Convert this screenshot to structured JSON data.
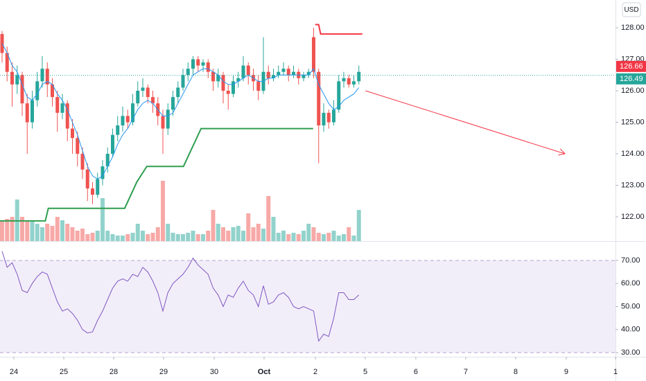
{
  "chart_data": {
    "type": "candlestick",
    "currency": "USD",
    "x": [
      0,
      1,
      2,
      3,
      4,
      5,
      6,
      7,
      8,
      9,
      10,
      11,
      12,
      13,
      14,
      15,
      16,
      17,
      18,
      19,
      20,
      21,
      22,
      23,
      24,
      25,
      26,
      27,
      28,
      29,
      30,
      31,
      32,
      33,
      34,
      35,
      36,
      37,
      38,
      39,
      40,
      41,
      42,
      43,
      44,
      45,
      46,
      47,
      48,
      49,
      50,
      51,
      52,
      53,
      54,
      55,
      56,
      57,
      58,
      59,
      60,
      61,
      62,
      63,
      64,
      65,
      66,
      67,
      68,
      69,
      70,
      71
    ],
    "candles": [
      [
        127.8,
        127.9,
        126.9,
        127.2
      ],
      [
        127.2,
        127.4,
        126.3,
        126.6
      ],
      [
        126.6,
        126.9,
        125.5,
        126.2
      ],
      [
        126.2,
        126.8,
        125.9,
        126.5
      ],
      [
        126.5,
        126.6,
        125.2,
        125.6
      ],
      [
        125.6,
        125.9,
        124.0,
        125.0
      ],
      [
        125.0,
        126.0,
        124.8,
        125.7
      ],
      [
        125.7,
        126.6,
        125.5,
        126.3
      ],
      [
        126.3,
        127.1,
        126.1,
        126.7
      ],
      [
        126.7,
        126.9,
        125.8,
        126.2
      ],
      [
        126.2,
        126.4,
        125.5,
        125.8
      ],
      [
        125.8,
        126.0,
        124.7,
        125.3
      ],
      [
        125.3,
        125.9,
        125.1,
        125.6
      ],
      [
        125.6,
        125.7,
        124.4,
        124.8
      ],
      [
        124.8,
        125.1,
        124.0,
        124.5
      ],
      [
        124.5,
        124.7,
        123.6,
        124.0
      ],
      [
        124.0,
        124.2,
        123.2,
        123.5
      ],
      [
        123.5,
        123.7,
        122.5,
        122.9
      ],
      [
        122.9,
        123.1,
        122.4,
        122.7
      ],
      [
        122.7,
        123.4,
        122.6,
        123.2
      ],
      [
        123.2,
        123.8,
        123.0,
        123.6
      ],
      [
        123.6,
        124.2,
        123.4,
        124.0
      ],
      [
        124.0,
        124.8,
        123.9,
        124.6
      ],
      [
        124.6,
        125.2,
        124.4,
        124.9
      ],
      [
        124.9,
        125.5,
        124.7,
        125.2
      ],
      [
        125.2,
        125.4,
        124.8,
        125.0
      ],
      [
        125.0,
        125.9,
        124.9,
        125.6
      ],
      [
        125.6,
        126.3,
        125.5,
        126.0
      ],
      [
        126.0,
        126.4,
        125.8,
        126.1
      ],
      [
        126.1,
        126.2,
        125.6,
        125.8
      ],
      [
        125.8,
        126.0,
        125.3,
        125.6
      ],
      [
        125.6,
        125.8,
        124.9,
        125.2
      ],
      [
        125.2,
        125.4,
        124.0,
        124.8
      ],
      [
        124.8,
        125.6,
        124.6,
        125.4
      ],
      [
        125.4,
        126.0,
        125.2,
        125.8
      ],
      [
        125.8,
        126.3,
        125.6,
        126.1
      ],
      [
        126.1,
        126.7,
        126.0,
        126.5
      ],
      [
        126.5,
        126.9,
        126.3,
        126.7
      ],
      [
        126.7,
        127.1,
        126.5,
        127.0
      ],
      [
        127.0,
        127.1,
        126.6,
        126.8
      ],
      [
        126.8,
        127.0,
        126.6,
        126.9
      ],
      [
        126.9,
        127.0,
        126.4,
        126.6
      ],
      [
        126.6,
        126.7,
        126.0,
        126.3
      ],
      [
        126.3,
        126.7,
        126.1,
        126.5
      ],
      [
        126.5,
        126.6,
        125.6,
        126.0
      ],
      [
        126.0,
        126.2,
        125.4,
        125.9
      ],
      [
        125.9,
        126.5,
        125.8,
        126.3
      ],
      [
        126.3,
        126.6,
        126.1,
        126.4
      ],
      [
        126.4,
        127.1,
        126.3,
        126.8
      ],
      [
        126.8,
        126.9,
        126.2,
        126.5
      ],
      [
        126.5,
        126.7,
        126.0,
        126.3
      ],
      [
        126.3,
        126.5,
        125.7,
        126.0
      ],
      [
        126.0,
        127.7,
        125.9,
        126.6
      ],
      [
        126.6,
        126.8,
        126.2,
        126.4
      ],
      [
        126.4,
        126.7,
        126.3,
        126.5
      ],
      [
        126.5,
        126.8,
        126.4,
        126.6
      ],
      [
        126.6,
        126.9,
        126.5,
        126.7
      ],
      [
        126.7,
        126.8,
        126.3,
        126.5
      ],
      [
        126.5,
        126.8,
        126.4,
        126.6
      ],
      [
        126.6,
        126.7,
        126.2,
        126.4
      ],
      [
        126.4,
        126.6,
        126.3,
        126.5
      ],
      [
        126.5,
        126.7,
        126.4,
        126.6
      ],
      [
        127.7,
        128.0,
        126.4,
        126.6
      ],
      [
        126.6,
        126.7,
        123.7,
        124.9
      ],
      [
        124.9,
        125.6,
        124.7,
        125.3
      ],
      [
        125.3,
        125.4,
        124.8,
        125.0
      ],
      [
        125.0,
        125.7,
        124.9,
        125.4
      ],
      [
        125.4,
        126.5,
        125.3,
        126.3
      ],
      [
        126.3,
        126.6,
        126.1,
        126.4
      ],
      [
        126.4,
        126.5,
        126.1,
        126.2
      ],
      [
        126.2,
        126.5,
        126.1,
        126.3
      ],
      [
        126.3,
        126.8,
        126.2,
        126.6
      ]
    ],
    "up_color": "#26a69a",
    "down_color": "#ef5350",
    "xlim": [
      -0.414,
      122.07
    ],
    "xticks": [
      {
        "value": 2.34,
        "label": "24"
      },
      {
        "value": 12.28,
        "label": "25"
      },
      {
        "value": 22.21,
        "label": "28"
      },
      {
        "value": 32.14,
        "label": "29"
      },
      {
        "value": 42.21,
        "label": "30"
      },
      {
        "value": 52.14,
        "label": "Oct"
      },
      {
        "value": 62.35,
        "label": "2"
      },
      {
        "value": 72.28,
        "label": "5"
      },
      {
        "value": 82.34,
        "label": "6"
      },
      {
        "value": 92.27,
        "label": "7"
      },
      {
        "value": 102.2,
        "label": "8"
      },
      {
        "value": 112.27,
        "label": "9"
      },
      {
        "value": 122.07,
        "label": "1"
      }
    ],
    "ylim": [
      121.23,
      128.88
    ],
    "yticks": [
      {
        "value": 122,
        "label": "122.00"
      },
      {
        "value": 123,
        "label": "123.00"
      },
      {
        "value": 124,
        "label": "124.00"
      },
      {
        "value": 125,
        "label": "125.00"
      },
      {
        "value": 126,
        "label": "126.00"
      },
      {
        "value": 127,
        "label": "127.00"
      },
      {
        "value": 128,
        "label": "128.00"
      }
    ],
    "ma": {
      "color": "#2196f3",
      "values": [
        127.5,
        127.2,
        126.8,
        126.6,
        126.2,
        125.8,
        125.7,
        125.9,
        126.2,
        126.3,
        126.2,
        125.9,
        125.7,
        125.4,
        125.0,
        124.6,
        124.1,
        123.6,
        123.3,
        123.2,
        123.3,
        123.6,
        123.9,
        124.3,
        124.6,
        124.8,
        125.1,
        125.4,
        125.6,
        125.7,
        125.6,
        125.4,
        125.2,
        125.2,
        125.3,
        125.6,
        125.9,
        126.2,
        126.5,
        126.6,
        126.7,
        126.7,
        126.6,
        126.5,
        126.3,
        126.2,
        126.2,
        126.3,
        126.4,
        126.5,
        126.4,
        126.3,
        126.3,
        126.4,
        126.4,
        126.5,
        126.5,
        126.5,
        126.5,
        126.5,
        126.5,
        126.5,
        126.7,
        126.2,
        125.9,
        125.6,
        125.4,
        125.5,
        125.7,
        125.8,
        125.9,
        126.1
      ]
    },
    "volume": {
      "ylim": [
        0,
        100
      ],
      "values": [
        30,
        32,
        35,
        60,
        35,
        30,
        28,
        25,
        20,
        25,
        22,
        35,
        30,
        25,
        20,
        15,
        18,
        10,
        12,
        15,
        62,
        15,
        10,
        8,
        8,
        10,
        12,
        25,
        15,
        10,
        12,
        20,
        87,
        25,
        12,
        10,
        10,
        12,
        15,
        10,
        10,
        15,
        45,
        25,
        20,
        15,
        20,
        22,
        15,
        40,
        20,
        25,
        18,
        65,
        35,
        12,
        15,
        10,
        12,
        10,
        15,
        25,
        20,
        12,
        10,
        12,
        15,
        8,
        10,
        20,
        8,
        45
      ]
    },
    "support": {
      "color": "#2e9e4f",
      "x": [
        -0.4,
        8.6,
        9.2,
        24.4,
        26.8,
        28.8,
        36.1,
        39.6,
        61.9
      ],
      "y": [
        121.87,
        121.87,
        122.27,
        122.27,
        123.1,
        123.6,
        123.6,
        124.8,
        124.8
      ]
    },
    "resistance": {
      "color": "#f23645",
      "x": [
        62.3,
        63.0,
        63.4,
        71.7
      ],
      "y": [
        128.1,
        128.1,
        127.8,
        127.8
      ]
    },
    "arrow": {
      "color": "#f23645",
      "x": [
        72.3,
        112.0
      ],
      "y": [
        126.0,
        124.0
      ]
    },
    "price_labels": [
      {
        "value": 126.66,
        "color": "#f23645"
      },
      {
        "value": 126.49,
        "color": "#26a69a"
      }
    ],
    "rsi": {
      "color": "#7e57c2",
      "band": [
        30,
        70
      ],
      "ylim": [
        28.2,
        77.8
      ],
      "yticks": [
        {
          "value": 30,
          "label": "30.00"
        },
        {
          "value": 40,
          "label": "40.00"
        },
        {
          "value": 50,
          "label": "50.00"
        },
        {
          "value": 60,
          "label": "60.00"
        },
        {
          "value": 70,
          "label": "70.00"
        }
      ],
      "values": [
        74,
        67,
        69,
        64,
        57,
        56,
        60,
        63,
        65,
        64,
        58,
        52,
        48,
        49,
        47,
        44,
        40,
        38.5,
        39,
        44,
        48,
        53,
        58,
        61,
        62,
        61,
        64,
        63,
        67,
        65,
        61,
        56,
        48,
        56,
        60,
        62,
        64,
        67,
        71,
        68,
        66,
        64,
        58,
        55,
        50,
        55,
        54,
        58,
        61,
        57,
        55,
        50,
        59,
        51,
        52,
        55,
        56,
        54,
        50,
        49,
        50,
        49,
        48,
        35,
        38,
        37,
        45,
        56,
        56,
        53,
        53,
        55
      ]
    }
  }
}
